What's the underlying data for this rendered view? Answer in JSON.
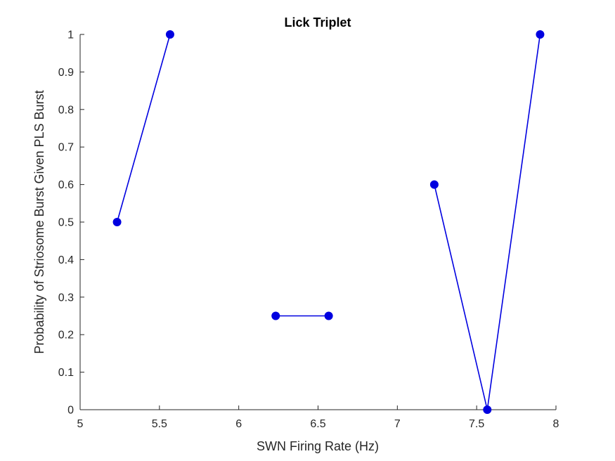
{
  "chart_data": {
    "type": "line",
    "title": "Lick Triplet",
    "xlabel": "SWN Firing Rate (Hz)",
    "ylabel": "Probability of Striosome Burst Given PLS Burst",
    "xlim": [
      5,
      8
    ],
    "ylim": [
      0,
      1
    ],
    "xticks": [
      "5",
      "5.5",
      "6",
      "6.5",
      "7",
      "7.5",
      "8"
    ],
    "yticks": [
      "0",
      "0.1",
      "0.2",
      "0.3",
      "0.4",
      "0.5",
      "0.6",
      "0.7",
      "0.8",
      "0.9",
      "1"
    ],
    "grid": false,
    "series_color": "#0000e0",
    "series": [
      {
        "x": [
          5.233,
          5.567
        ],
        "y": [
          0.5,
          1.0
        ]
      },
      {
        "x": [
          6.233,
          6.567
        ],
        "y": [
          0.25,
          0.25
        ]
      },
      {
        "x": [
          7.233,
          7.567,
          7.9
        ],
        "y": [
          0.6,
          0.0,
          1.0
        ]
      }
    ]
  }
}
